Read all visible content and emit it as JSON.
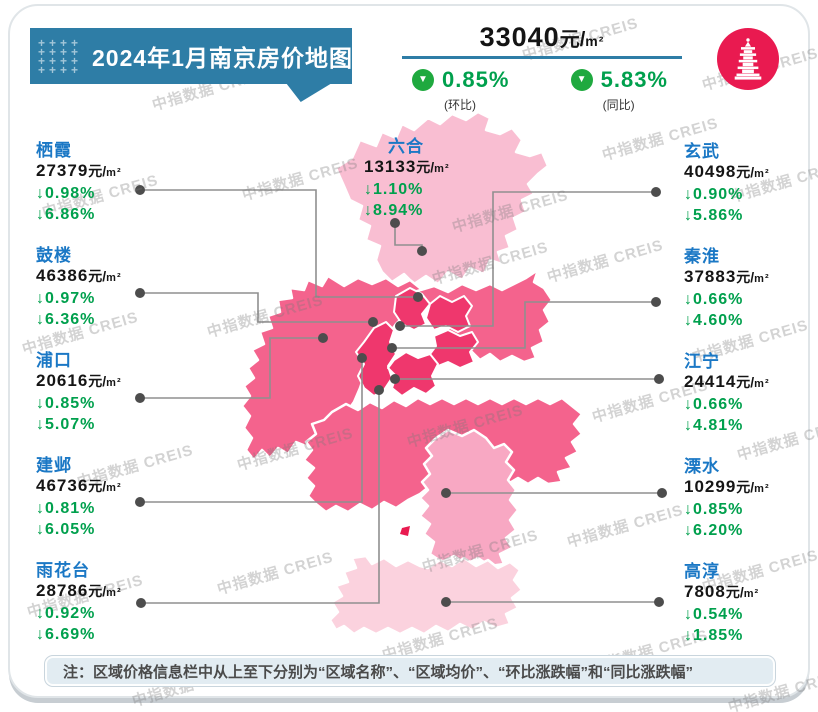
{
  "title": "2024年1月南京房价地图",
  "banner_plus_char": "+",
  "units": {
    "cny": "元/",
    "sqm": "m²"
  },
  "summary": {
    "price": "33040",
    "mom": {
      "value": "0.85%",
      "label": "(环比)"
    },
    "yoy": {
      "value": "5.83%",
      "label": "(同比)"
    }
  },
  "note": "注：区域价格信息栏中从上至下分别为“区域名称”、“区域均价”、“环比涨跌幅”和“同比涨跌幅”",
  "watermark": "中指数据 CREIS",
  "colors": {
    "banner_blue": "#2E7DA6",
    "district_name_blue": "#1B78C5",
    "green_text": "#00A04D",
    "green_circle": "#1FA93F",
    "logo_crimson": "#E91A50",
    "map_luhe": "#F9BED2",
    "map_rose": "#F4638D",
    "map_core": "#EF376D",
    "map_lishui": "#F8A8C3",
    "map_gaochun": "#FBD2DE",
    "note_bg": "#E2ECF2"
  },
  "districts": {
    "left": [
      {
        "id": "qixia",
        "name": "栖霞",
        "price": "27379",
        "mom": "↓0.98%",
        "yoy": "↓6.86%"
      },
      {
        "id": "gulou",
        "name": "鼓楼",
        "price": "46386",
        "mom": "↓0.97%",
        "yoy": "↓6.36%"
      },
      {
        "id": "pukou",
        "name": "浦口",
        "price": "20616",
        "mom": "↓0.85%",
        "yoy": "↓5.07%"
      },
      {
        "id": "jianye",
        "name": "建邺",
        "price": "46736",
        "mom": "↓0.81%",
        "yoy": "↓6.05%"
      },
      {
        "id": "yuhuatai",
        "name": "雨花台",
        "price": "28786",
        "mom": "↓0.92%",
        "yoy": "↓6.69%"
      }
    ],
    "right": [
      {
        "id": "xuanwu",
        "name": "玄武",
        "price": "40498",
        "mom": "↓0.90%",
        "yoy": "↓5.86%"
      },
      {
        "id": "qinhuai",
        "name": "秦淮",
        "price": "37883",
        "mom": "↓0.66%",
        "yoy": "↓4.60%"
      },
      {
        "id": "jiangning",
        "name": "江宁",
        "price": "24414",
        "mom": "↓0.66%",
        "yoy": "↓4.81%"
      },
      {
        "id": "lishui",
        "name": "溧水",
        "price": "10299",
        "mom": "↓0.85%",
        "yoy": "↓6.20%"
      },
      {
        "id": "gaochun",
        "name": "高淳",
        "price": "7808",
        "mom": "↓0.54%",
        "yoy": "↓1.85%"
      }
    ],
    "map_overlay": [
      {
        "id": "luhe",
        "name": "六合",
        "price": "13133",
        "mom": "↓1.10%",
        "yoy": "↓8.94%"
      }
    ]
  },
  "chart_data": {
    "type": "heatmap",
    "title": "2024年1月南京房价地图",
    "categories": [
      "六合",
      "栖霞",
      "鼓楼",
      "浦口",
      "建邺",
      "雨花台",
      "玄武",
      "秦淮",
      "江宁",
      "溧水",
      "高淳"
    ],
    "series": [
      {
        "name": "区域均价(元/m²)",
        "values": [
          13133,
          27379,
          46386,
          20616,
          46736,
          28786,
          40498,
          37883,
          24414,
          10299,
          7808
        ]
      },
      {
        "name": "环比涨跌幅(%)",
        "values": [
          -1.1,
          -0.98,
          -0.97,
          -0.85,
          -0.81,
          -0.92,
          -0.9,
          -0.66,
          -0.66,
          -0.85,
          -0.54
        ]
      },
      {
        "name": "同比涨跌幅(%)",
        "values": [
          -8.94,
          -6.86,
          -6.36,
          -5.07,
          -6.05,
          -6.69,
          -5.86,
          -4.6,
          -4.81,
          -6.2,
          -1.85
        ]
      }
    ],
    "overall": {
      "price": 33040,
      "mom_pct": -0.85,
      "yoy_pct": -5.83
    }
  }
}
